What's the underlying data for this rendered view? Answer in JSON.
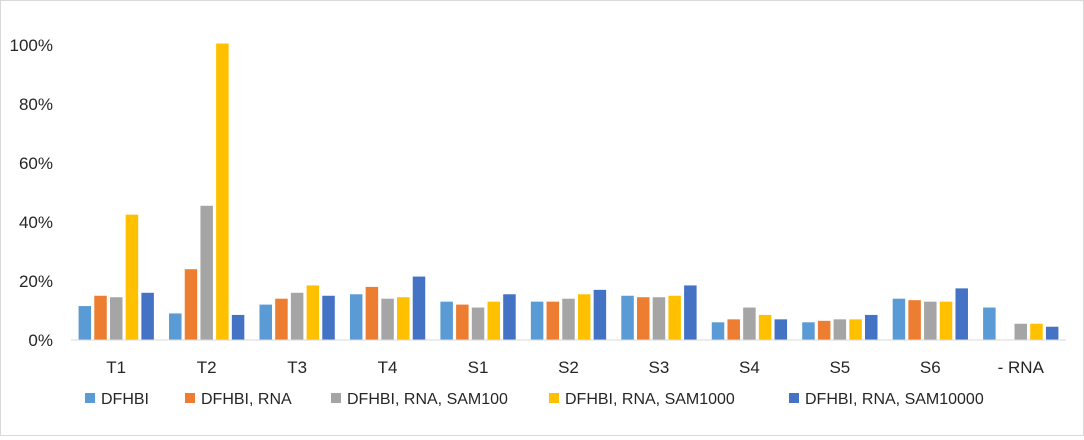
{
  "chart_data": {
    "type": "bar",
    "title": "",
    "xlabel": "",
    "ylabel": "",
    "categories": [
      "T1",
      "T2",
      "T3",
      "T4",
      "S1",
      "S2",
      "S3",
      "S4",
      "S5",
      "S6",
      "- RNA"
    ],
    "ylim": [
      0,
      100
    ],
    "y_ticks": [
      "0%",
      "20%",
      "40%",
      "60%",
      "80%",
      "100%"
    ],
    "y_tick_values": [
      0,
      20,
      40,
      60,
      80,
      100
    ],
    "grid": false,
    "legend_position": "bottom",
    "series": [
      {
        "name": "DFHBI",
        "color": "#5b9bd5",
        "values": [
          11.5,
          9,
          12,
          15.5,
          13,
          13,
          15,
          6,
          6,
          14,
          11
        ]
      },
      {
        "name": "DFHBI, RNA",
        "color": "#ed7d31",
        "values": [
          15,
          24,
          14,
          18,
          12,
          13,
          14.5,
          7,
          6.5,
          13.5,
          0
        ]
      },
      {
        "name": "DFHBI, RNA, SAM100",
        "color": "#a5a5a5",
        "values": [
          14.5,
          45.5,
          16,
          14,
          11,
          14,
          14.5,
          11,
          7,
          13,
          5.5
        ]
      },
      {
        "name": "DFHBI, RNA, SAM1000",
        "color": "#ffc000",
        "values": [
          42.5,
          100.5,
          18.5,
          14.5,
          13,
          15.5,
          15,
          8.5,
          7,
          13,
          5.5
        ]
      },
      {
        "name": "DFHBI, RNA, SAM10000",
        "color": "#4472c4",
        "values": [
          16,
          8.5,
          15,
          21.5,
          15.5,
          17,
          18.5,
          7,
          8.5,
          17.5,
          4.5
        ]
      }
    ]
  }
}
